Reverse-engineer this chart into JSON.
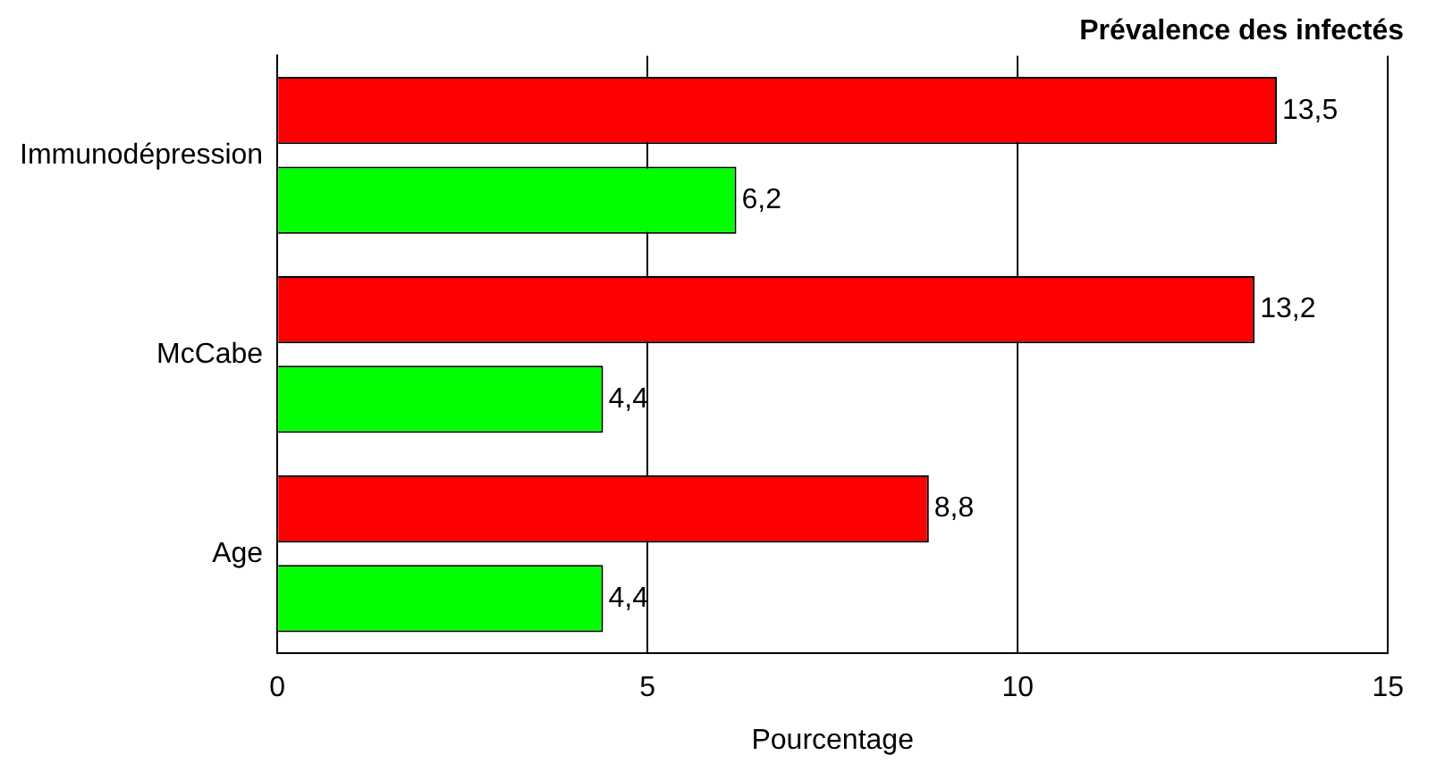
{
  "chart_data": {
    "type": "bar",
    "orientation": "horizontal",
    "title": "Prévalence des infectés",
    "xlabel": "Pourcentage",
    "categories": [
      "Immunodépression",
      "McCabe",
      "Age"
    ],
    "series": [
      {
        "color": "#ff0000",
        "values": [
          13.5,
          13.2,
          8.8
        ],
        "value_labels": [
          "13,5",
          "13,2",
          "8,8"
        ]
      },
      {
        "color": "#00ff00",
        "values": [
          6.2,
          4.4,
          4.4
        ],
        "value_labels": [
          "6,2",
          "4,4",
          "4,4"
        ]
      }
    ],
    "xlim": [
      0,
      15
    ],
    "xticks": [
      0,
      5,
      10,
      15
    ],
    "grid": "x",
    "legend": false
  }
}
